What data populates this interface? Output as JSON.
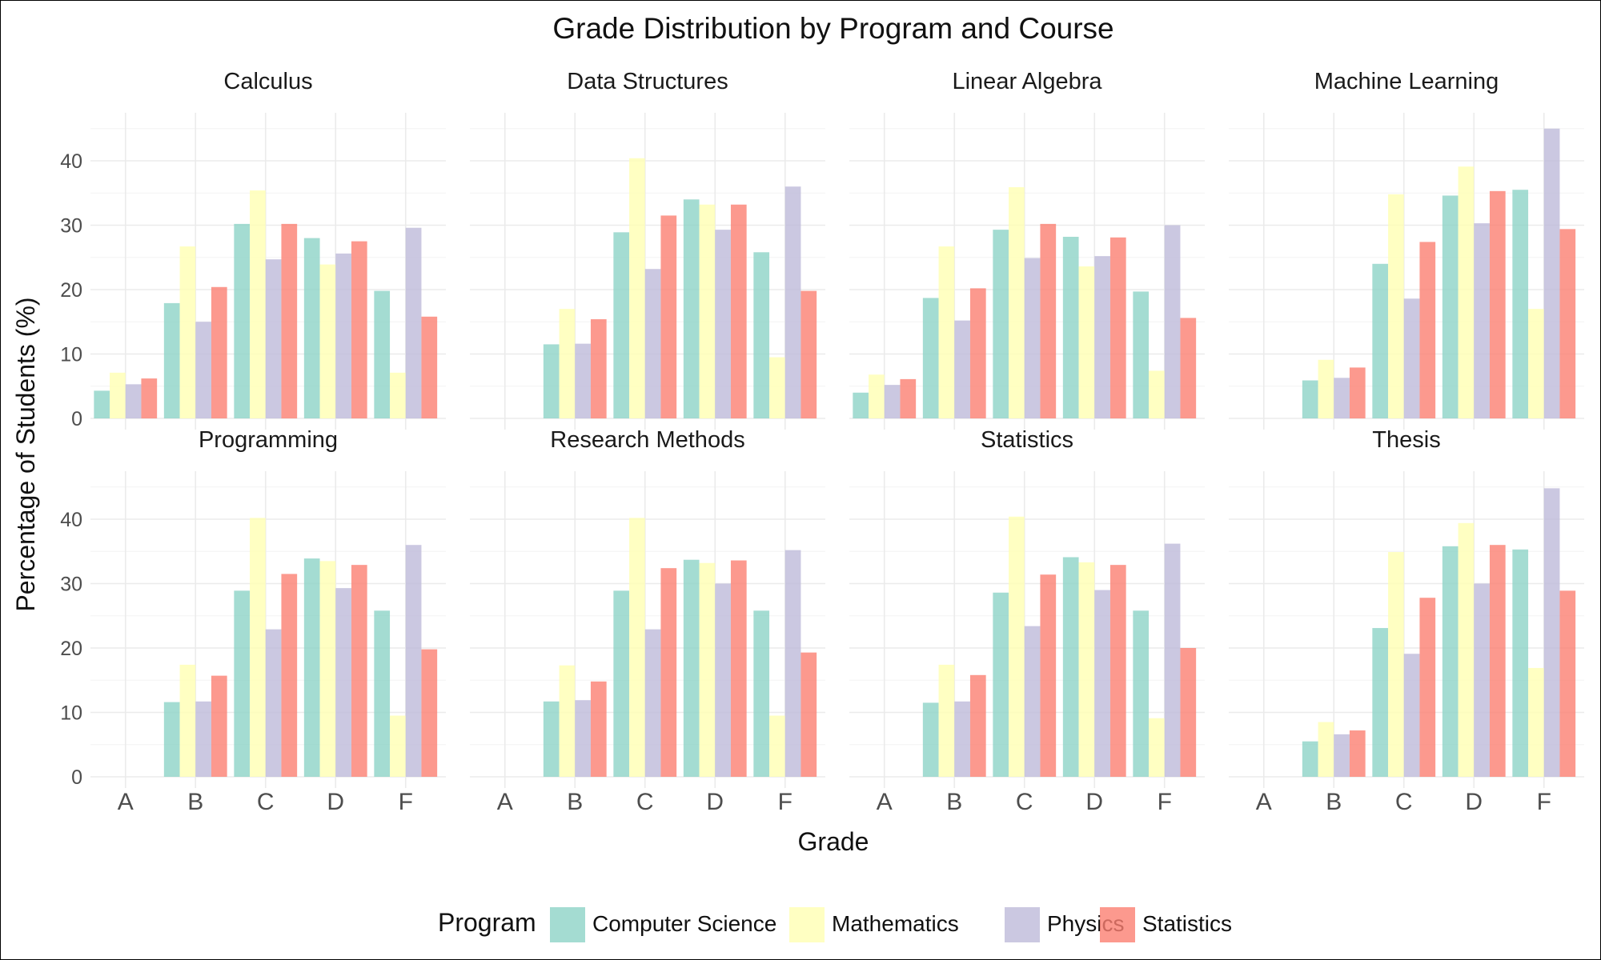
{
  "chart_data": {
    "type": "bar",
    "title": "Grade Distribution by Program and Course",
    "xlabel": "Grade",
    "ylabel": "Percentage of Students (%)",
    "ylim": [
      0,
      47
    ],
    "yticks": [
      "0",
      "10",
      "20",
      "30",
      "40"
    ],
    "categories": [
      "A",
      "B",
      "C",
      "D",
      "F"
    ],
    "legend": {
      "title": "Program",
      "position": "bottom"
    },
    "programs": [
      {
        "name": "Computer Science",
        "color": "#8dd3c7"
      },
      {
        "name": "Mathematics",
        "color": "#ffffb3"
      },
      {
        "name": "Physics",
        "color": "#bebada"
      },
      {
        "name": "Statistics",
        "color": "#fb8072"
      }
    ],
    "facets": [
      {
        "course": "Calculus",
        "values": [
          [
            4.3,
            7.1,
            5.3,
            6.2
          ],
          [
            17.9,
            26.7,
            15.0,
            20.4
          ],
          [
            30.2,
            35.4,
            24.7,
            30.2
          ],
          [
            28.0,
            23.9,
            25.6,
            27.5
          ],
          [
            19.8,
            7.1,
            29.6,
            15.8
          ]
        ]
      },
      {
        "course": "Data Structures",
        "values": [
          [
            0,
            0,
            0,
            0
          ],
          [
            11.5,
            17.0,
            11.6,
            15.4
          ],
          [
            28.9,
            40.4,
            23.2,
            31.5
          ],
          [
            34.0,
            33.2,
            29.3,
            33.2
          ],
          [
            25.8,
            9.5,
            36.0,
            19.8
          ]
        ]
      },
      {
        "course": "Linear Algebra",
        "values": [
          [
            4.0,
            6.8,
            5.2,
            6.1
          ],
          [
            18.7,
            26.7,
            15.2,
            20.2
          ],
          [
            29.3,
            35.9,
            24.9,
            30.2
          ],
          [
            28.2,
            23.6,
            25.2,
            28.1
          ],
          [
            19.7,
            7.4,
            30.0,
            15.6
          ]
        ]
      },
      {
        "course": "Machine Learning",
        "values": [
          [
            0,
            0,
            0,
            0
          ],
          [
            5.9,
            9.1,
            6.3,
            7.9
          ],
          [
            24.0,
            34.8,
            18.6,
            27.4
          ],
          [
            34.6,
            39.1,
            30.3,
            35.3
          ],
          [
            35.5,
            17.0,
            45.0,
            29.4
          ]
        ]
      },
      {
        "course": "Programming",
        "values": [
          [
            0,
            0,
            0,
            0
          ],
          [
            11.6,
            17.4,
            11.7,
            15.7
          ],
          [
            28.9,
            40.2,
            22.9,
            31.5
          ],
          [
            33.9,
            33.5,
            29.3,
            32.9
          ],
          [
            25.8,
            9.5,
            36.0,
            19.8
          ]
        ]
      },
      {
        "course": "Research Methods",
        "values": [
          [
            0,
            0,
            0,
            0
          ],
          [
            11.7,
            17.3,
            11.9,
            14.8
          ],
          [
            28.9,
            40.2,
            22.9,
            32.4
          ],
          [
            33.7,
            33.2,
            30.0,
            33.6
          ],
          [
            25.8,
            9.5,
            35.2,
            19.3
          ]
        ]
      },
      {
        "course": "Statistics",
        "values": [
          [
            0,
            0,
            0,
            0
          ],
          [
            11.5,
            17.4,
            11.7,
            15.8
          ],
          [
            28.6,
            40.4,
            23.4,
            31.4
          ],
          [
            34.1,
            33.3,
            29.0,
            32.9
          ],
          [
            25.8,
            9.1,
            36.2,
            20.0
          ]
        ]
      },
      {
        "course": "Thesis",
        "values": [
          [
            0,
            0,
            0,
            0
          ],
          [
            5.5,
            8.5,
            6.6,
            7.2
          ],
          [
            23.1,
            34.9,
            19.1,
            27.8
          ],
          [
            35.8,
            39.4,
            30.0,
            36.0
          ],
          [
            35.3,
            16.9,
            44.8,
            28.9
          ]
        ]
      }
    ]
  }
}
